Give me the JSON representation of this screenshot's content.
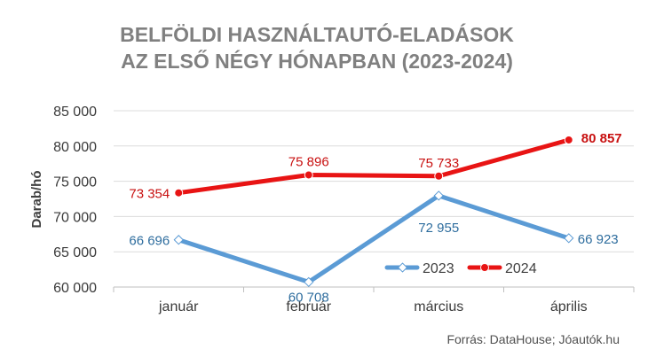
{
  "chart_data": {
    "type": "line",
    "title_lines": [
      "BELFÖLDI HASZNÁLTAUTÓ-ELADÁSOK",
      "AZ ELSŐ NÉGY HÓNAPBAN (2023-2024)"
    ],
    "ylabel": "Darab/hó",
    "categories": [
      "január",
      "február",
      "március",
      "április"
    ],
    "ylim": [
      60000,
      85000
    ],
    "yticks": [
      60000,
      65000,
      70000,
      75000,
      80000,
      85000
    ],
    "ytick_labels": [
      "60 000",
      "65 000",
      "70 000",
      "75 000",
      "80 000",
      "85 000"
    ],
    "grid": true,
    "legend_position": "bottom-right",
    "series": [
      {
        "name": "2023",
        "color": "#5b9bd5",
        "values": [
          66696,
          60708,
          72955,
          66923
        ],
        "labels": [
          "66 696",
          "60 708",
          "72 955",
          "66 923"
        ]
      },
      {
        "name": "2024",
        "color": "#e81414",
        "values": [
          73354,
          75896,
          75733,
          80857
        ],
        "labels": [
          "73 354",
          "75 896",
          "75 733",
          "80 857"
        ]
      }
    ],
    "source": "Forrás: DataHouse; Jóautók.hu"
  }
}
